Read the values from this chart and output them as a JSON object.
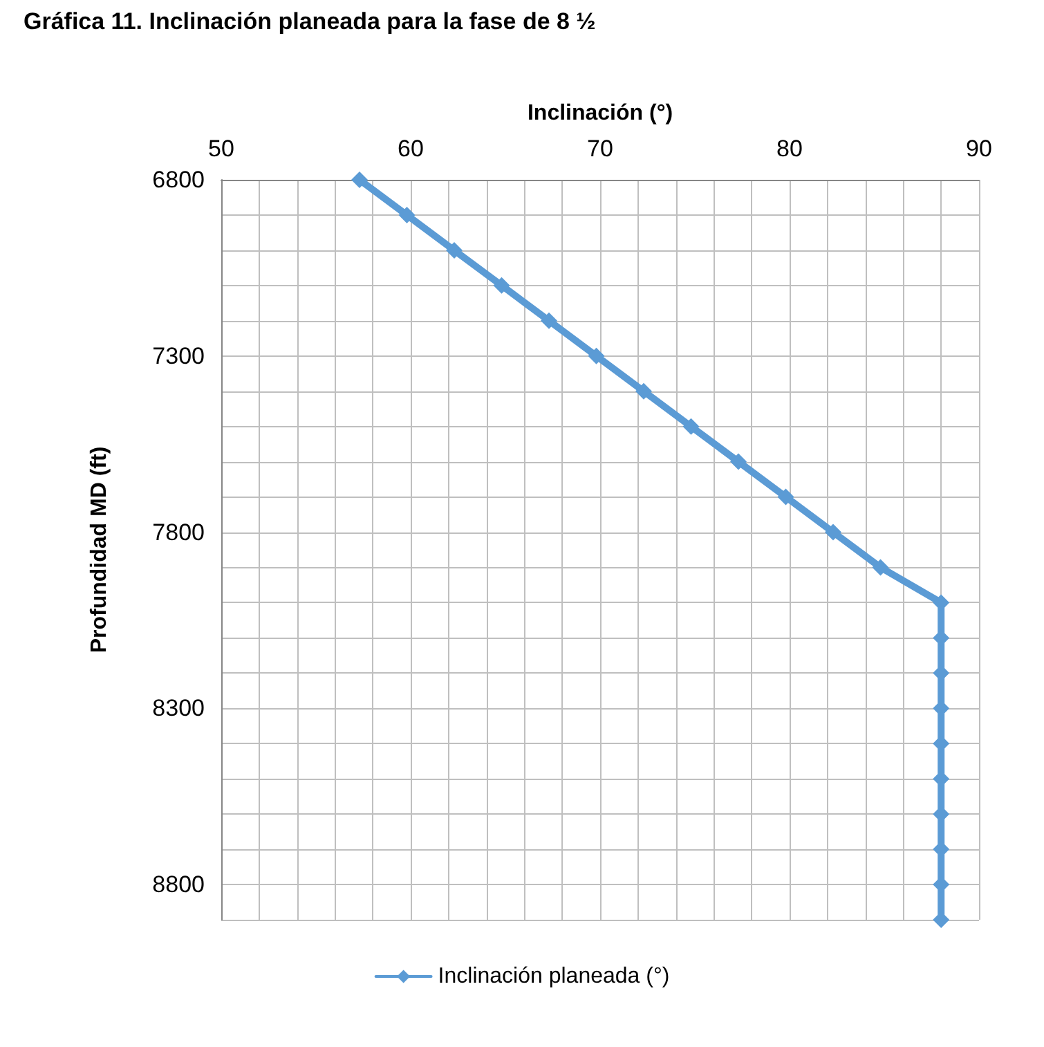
{
  "chart_data": {
    "type": "line",
    "title": "Gráfica 11. Inclinación planeada para la fase de 8 ½",
    "xlabel": "Inclinación (°)",
    "ylabel": "Profundidad MD (ft)",
    "xlim": [
      50,
      90
    ],
    "xticks": [
      50,
      {
        "value": 52,
        "label": null
      },
      {
        "value": 54,
        "label": null
      },
      {
        "value": 56,
        "label": null
      },
      {
        "value": 58,
        "label": null
      },
      60,
      {
        "value": 62,
        "label": null
      },
      {
        "value": 64,
        "label": null
      },
      {
        "value": 66,
        "label": null
      },
      {
        "value": 68,
        "label": null
      },
      70,
      {
        "value": 72,
        "label": null
      },
      {
        "value": 74,
        "label": null
      },
      {
        "value": 76,
        "label": null
      },
      {
        "value": 78,
        "label": null
      },
      80,
      {
        "value": 82,
        "label": null
      },
      {
        "value": 84,
        "label": null
      },
      {
        "value": 86,
        "label": null
      },
      {
        "value": 88,
        "label": null
      },
      90
    ],
    "ylim": [
      8900,
      6800
    ],
    "yticks": [
      6800,
      {
        "value": 6900,
        "label": null
      },
      {
        "value": 7000,
        "label": null
      },
      {
        "value": 7100,
        "label": null
      },
      {
        "value": 7200,
        "label": null
      },
      7300,
      {
        "value": 7400,
        "label": null
      },
      {
        "value": 7500,
        "label": null
      },
      {
        "value": 7600,
        "label": null
      },
      {
        "value": 7700,
        "label": null
      },
      7800,
      {
        "value": 7900,
        "label": null
      },
      {
        "value": 8000,
        "label": null
      },
      {
        "value": 8100,
        "label": null
      },
      {
        "value": 8200,
        "label": null
      },
      8300,
      {
        "value": 8400,
        "label": null
      },
      {
        "value": 8500,
        "label": null
      },
      {
        "value": 8600,
        "label": null
      },
      {
        "value": 8700,
        "label": null
      },
      8800,
      {
        "value": 8900,
        "label": null
      }
    ],
    "grid": true,
    "legend": "bottom",
    "marker": "diamond",
    "line_style": "solid",
    "series": [
      {
        "name": "Inclinación planeada (°)",
        "color": "#5b9bd5",
        "x": [
          57.3,
          59.8,
          62.3,
          64.8,
          67.3,
          69.8,
          72.3,
          74.8,
          77.3,
          79.8,
          82.3,
          84.8,
          88,
          88,
          88,
          88,
          88,
          88,
          88,
          88,
          88,
          88
        ],
        "values": [
          6800,
          6900,
          7000,
          7100,
          7200,
          7300,
          7400,
          7500,
          7600,
          7700,
          7800,
          7900,
          8000,
          8100,
          8200,
          8300,
          8400,
          8500,
          8600,
          8700,
          8800,
          8900
        ]
      }
    ]
  }
}
